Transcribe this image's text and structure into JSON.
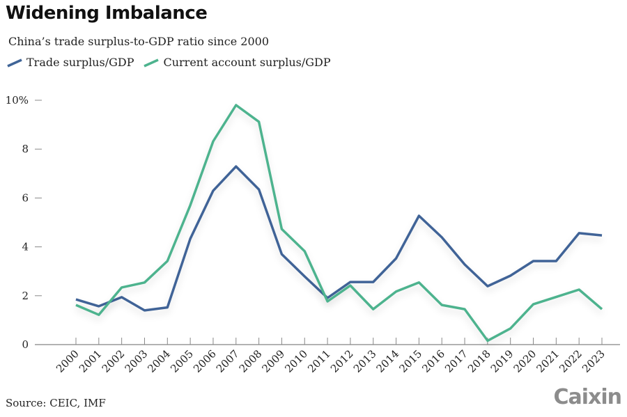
{
  "header": {
    "title": "Widening Imbalance",
    "subtitle": "China’s trade surplus-to-GDP ratio since 2000"
  },
  "footer": {
    "source": "Source: CEIC, IMF",
    "logo": "Caixin"
  },
  "chart_data": {
    "type": "line",
    "title": "Widening Imbalance",
    "subtitle": "China’s trade surplus-to-GDP ratio since 2000",
    "x": [
      "2000",
      "2001",
      "2002",
      "2003",
      "2004",
      "2005",
      "2006",
      "2007",
      "2008",
      "2009",
      "2010",
      "2011",
      "2012",
      "2013",
      "2014",
      "2015",
      "2016",
      "2017",
      "2018",
      "2019",
      "2020",
      "2021",
      "2022",
      "2023"
    ],
    "ylim": [
      0,
      10
    ],
    "yticks": [
      0,
      2,
      4,
      6,
      8,
      10
    ],
    "ytick_labels": [
      "0",
      "2",
      "4",
      "6",
      "8",
      "10%"
    ],
    "grid": false,
    "legend": "top-left",
    "series": [
      {
        "name": "Trade surplus/GDP",
        "color": "#3f6497",
        "values": [
          1.85,
          1.57,
          1.94,
          1.4,
          1.52,
          4.33,
          6.3,
          7.29,
          6.35,
          3.7,
          2.79,
          1.91,
          2.56,
          2.56,
          3.53,
          5.27,
          4.39,
          3.28,
          2.39,
          2.82,
          3.42,
          3.42,
          4.56,
          4.47
        ]
      },
      {
        "name": "Current account surplus/GDP",
        "color": "#4db38e",
        "values": [
          1.62,
          1.22,
          2.34,
          2.54,
          3.42,
          5.7,
          8.32,
          9.8,
          9.12,
          4.73,
          3.82,
          1.77,
          2.42,
          1.45,
          2.17,
          2.54,
          1.62,
          1.45,
          0.16,
          0.66,
          1.65,
          1.95,
          2.25,
          1.45
        ]
      }
    ]
  }
}
